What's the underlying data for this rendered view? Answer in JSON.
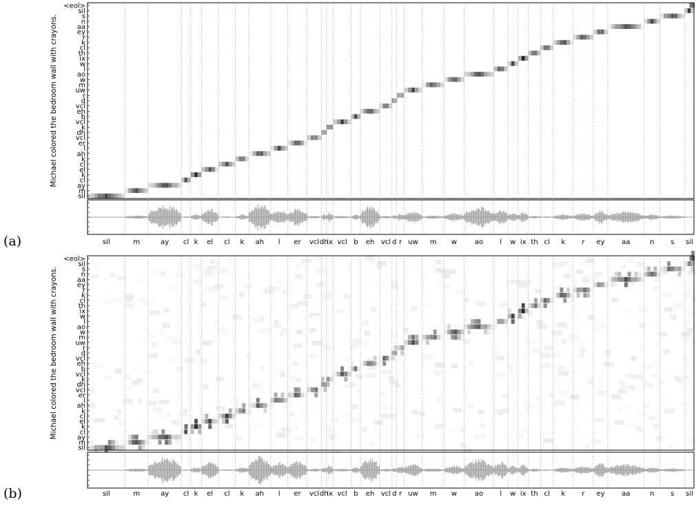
{
  "chart_data": [
    {
      "type": "heatmap",
      "panel_label": "(a)",
      "ylabel": "Michael colored the bedroom wall with crayons.",
      "y_tokens": [
        "sil",
        "m",
        "ay",
        "cl",
        "k",
        "el",
        "cl",
        "k",
        "ah",
        "l",
        "er",
        "vcl",
        "dh",
        "k",
        "vcl",
        "b",
        "eh",
        "vcl",
        "d",
        "r",
        "uw",
        "m",
        "w",
        "ao",
        "l",
        "w",
        "ix",
        "th",
        "cl",
        "k",
        "r",
        "ey",
        "aa",
        "n",
        "s",
        "sil",
        "<eol>"
      ],
      "x_segments": [
        {
          "label": "sil",
          "start": 0.0,
          "end": 0.062
        },
        {
          "label": "m",
          "start": 0.062,
          "end": 0.1
        },
        {
          "label": "ay",
          "start": 0.1,
          "end": 0.155
        },
        {
          "label": "cl",
          "start": 0.155,
          "end": 0.17
        },
        {
          "label": "k",
          "start": 0.17,
          "end": 0.188
        },
        {
          "label": "el",
          "start": 0.188,
          "end": 0.216
        },
        {
          "label": "cl",
          "start": 0.216,
          "end": 0.244
        },
        {
          "label": "k",
          "start": 0.244,
          "end": 0.266
        },
        {
          "label": "ah",
          "start": 0.266,
          "end": 0.302
        },
        {
          "label": "l",
          "start": 0.302,
          "end": 0.33
        },
        {
          "label": "er",
          "start": 0.33,
          "end": 0.362
        },
        {
          "label": "vcl",
          "start": 0.362,
          "end": 0.386
        },
        {
          "label": "dh",
          "start": 0.386,
          "end": 0.394
        },
        {
          "label": "ix",
          "start": 0.394,
          "end": 0.405
        },
        {
          "label": "vcl",
          "start": 0.405,
          "end": 0.435
        },
        {
          "label": "b",
          "start": 0.435,
          "end": 0.45
        },
        {
          "label": "eh",
          "start": 0.45,
          "end": 0.482
        },
        {
          "label": "vcl",
          "start": 0.482,
          "end": 0.502
        },
        {
          "label": "d",
          "start": 0.502,
          "end": 0.51
        },
        {
          "label": "r",
          "start": 0.51,
          "end": 0.522
        },
        {
          "label": "uw",
          "start": 0.522,
          "end": 0.552
        },
        {
          "label": "m",
          "start": 0.552,
          "end": 0.588
        },
        {
          "label": "w",
          "start": 0.588,
          "end": 0.621
        },
        {
          "label": "ao",
          "start": 0.621,
          "end": 0.67
        },
        {
          "label": "l",
          "start": 0.67,
          "end": 0.693
        },
        {
          "label": "w",
          "start": 0.693,
          "end": 0.71
        },
        {
          "label": "ix",
          "start": 0.71,
          "end": 0.727
        },
        {
          "label": "th",
          "start": 0.727,
          "end": 0.747
        },
        {
          "label": "cl",
          "start": 0.747,
          "end": 0.768
        },
        {
          "label": "k",
          "start": 0.768,
          "end": 0.801
        },
        {
          "label": "r",
          "start": 0.801,
          "end": 0.834
        },
        {
          "label": "ey",
          "start": 0.834,
          "end": 0.858
        },
        {
          "label": "aa",
          "start": 0.858,
          "end": 0.918
        },
        {
          "label": "n",
          "start": 0.918,
          "end": 0.944
        },
        {
          "label": "s",
          "start": 0.944,
          "end": 0.985
        },
        {
          "label": "sil",
          "start": 0.985,
          "end": 1.0
        }
      ],
      "attention_path": "diagonal",
      "waveform": "speech signal"
    },
    {
      "type": "heatmap",
      "panel_label": "(b)",
      "ylabel": "Michael colored the bedroom wall with crayons.",
      "y_tokens": [
        "sil",
        "m",
        "ay",
        "cl",
        "k",
        "el",
        "cl",
        "k",
        "ah",
        "l",
        "er",
        "vcl",
        "dh",
        "k",
        "vcl",
        "b",
        "eh",
        "vcl",
        "d",
        "r",
        "uw",
        "m",
        "w",
        "ao",
        "l",
        "w",
        "ix",
        "th",
        "cl",
        "k",
        "r",
        "ey",
        "aa",
        "n",
        "s",
        "sil",
        "<eol>"
      ],
      "x_segments": "same as (a)",
      "attention_path": "diagonal, noisy",
      "waveform": "speech signal"
    }
  ]
}
